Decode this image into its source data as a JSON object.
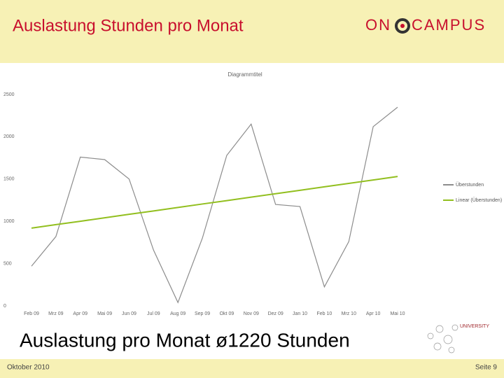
{
  "header": {
    "title": "Auslastung Stunden pro Monat",
    "logo_left": "ON",
    "logo_right": "CAMPUS"
  },
  "chart_data": {
    "type": "line",
    "title": "Diagrammtitel",
    "categories": [
      "Feb 09",
      "Mrz 09",
      "Apr 09",
      "Mai 09",
      "Jun 09",
      "Jul 09",
      "Aug 09",
      "Sep 09",
      "Okt 09",
      "Nov 09",
      "Dez 09",
      "Jan 10",
      "Feb 10",
      "Mrz 10",
      "Apr 10",
      "Mai 10"
    ],
    "series": [
      {
        "name": "Überstunden",
        "color": "#8c8c8c",
        "values": [
          470,
          820,
          1760,
          1730,
          1500,
          660,
          40,
          800,
          1780,
          2150,
          1200,
          1175,
          225,
          760,
          2120,
          2350
        ]
      },
      {
        "name": "Linear (Überstunden)",
        "color": "#92bf1f",
        "values": [
          920,
          961,
          1001,
          1042,
          1083,
          1123,
          1164,
          1205,
          1245,
          1286,
          1327,
          1367,
          1408,
          1449,
          1489,
          1530
        ]
      }
    ],
    "ylim": [
      0,
      2500
    ],
    "yticks": [
      0,
      500,
      1000,
      1500,
      2000,
      2500
    ],
    "grid": false,
    "legend": "right"
  },
  "summary": "Auslastung pro Monat ø1220 Stunden",
  "badge": "UNIVERSITY",
  "footer": {
    "left": "Oktober 2010",
    "right": "Seite 9"
  }
}
